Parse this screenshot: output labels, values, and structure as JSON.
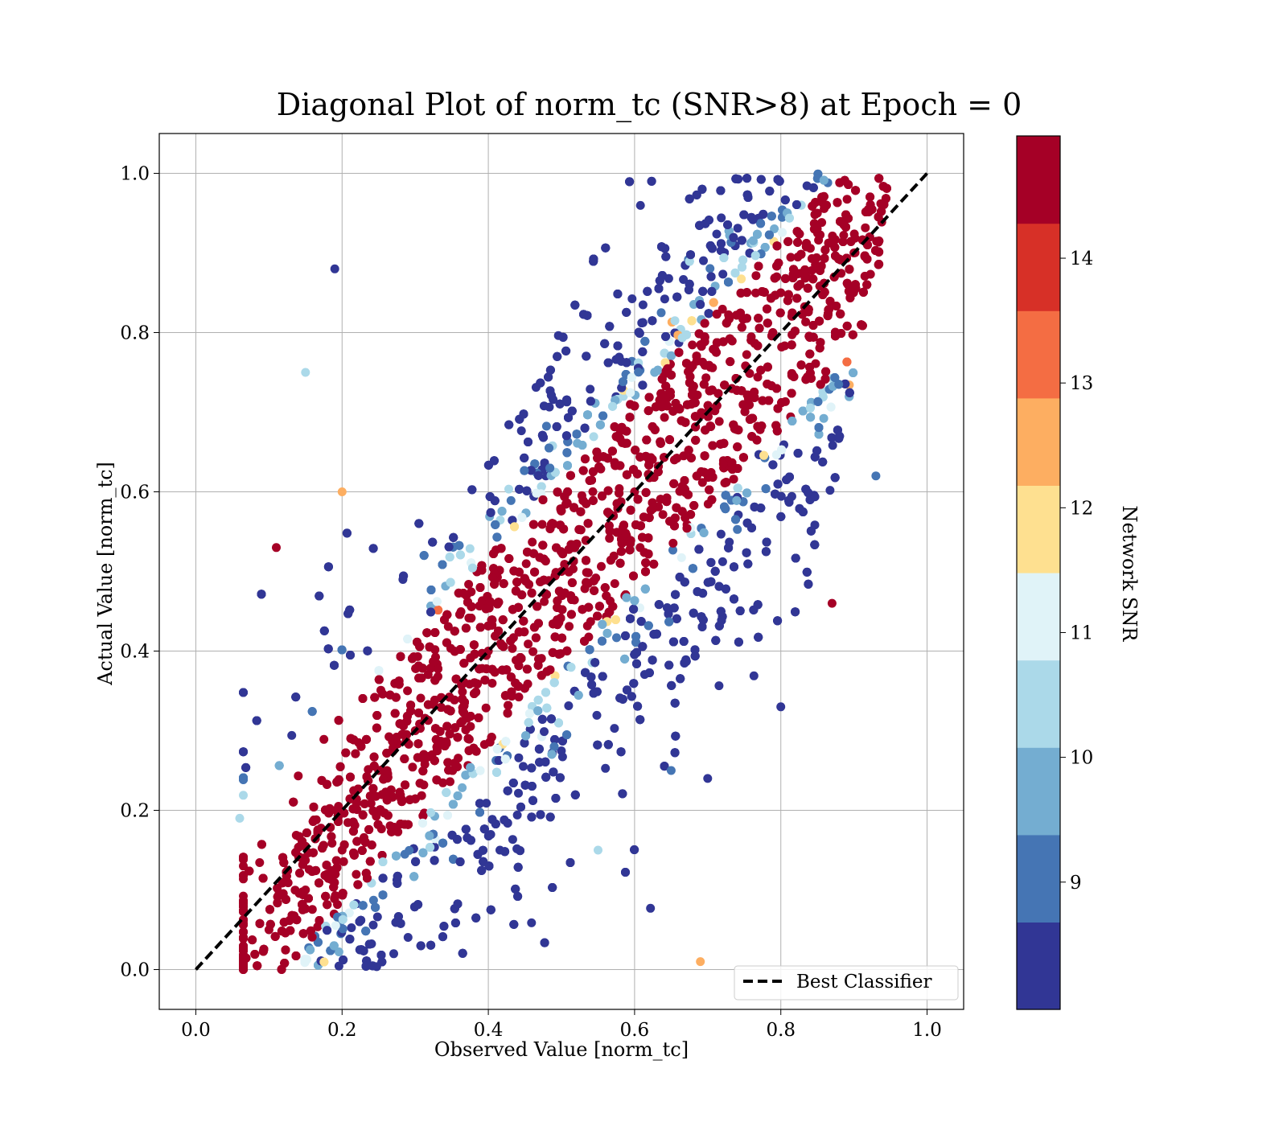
{
  "chart_data": {
    "type": "scatter",
    "title": "Diagonal Plot of norm_tc (SNR>8) at Epoch = 0",
    "xlabel": "Observed Value [norm_tc]",
    "ylabel": "Actual Value [norm_tc]",
    "xlim": [
      -0.05,
      1.05
    ],
    "ylim": [
      -0.05,
      1.05
    ],
    "xticks": [
      "0.0",
      "0.2",
      "0.4",
      "0.6",
      "0.8",
      "1.0"
    ],
    "yticks": [
      "0.0",
      "0.2",
      "0.4",
      "0.6",
      "0.8",
      "1.0"
    ],
    "grid": true,
    "legend": {
      "placement": "lower-right",
      "entries": [
        "Best Classifier"
      ]
    },
    "reference_line": {
      "name": "Best Classifier",
      "style": "dashed",
      "color": "#000000",
      "x": [
        0,
        1
      ],
      "y": [
        0,
        1
      ]
    },
    "colorbar": {
      "label": "Network SNR",
      "range": [
        8,
        15
      ],
      "ticks": [
        "9",
        "10",
        "11",
        "12",
        "13",
        "14"
      ],
      "levels": 10,
      "colormap": "RdYlBu_r",
      "colors": [
        "#313695",
        "#4575b4",
        "#74add1",
        "#abd9e9",
        "#e0f3f8",
        "#fee090",
        "#fdae61",
        "#f46d43",
        "#d73027",
        "#a50026"
      ]
    },
    "series": [
      {
        "description_points": [
          {
            "x": 0.1,
            "y": 0.05,
            "snr": 14.8
          },
          {
            "x": 0.15,
            "y": 0.1,
            "snr": 14.9
          },
          {
            "x": 0.2,
            "y": 0.15,
            "snr": 14.9
          },
          {
            "x": 0.25,
            "y": 0.25,
            "snr": 14.9
          },
          {
            "x": 0.3,
            "y": 0.3,
            "snr": 14.8
          },
          {
            "x": 0.4,
            "y": 0.4,
            "snr": 14.9
          },
          {
            "x": 0.5,
            "y": 0.5,
            "snr": 14.9
          },
          {
            "x": 0.6,
            "y": 0.6,
            "snr": 14.8
          },
          {
            "x": 0.7,
            "y": 0.7,
            "snr": 14.9
          },
          {
            "x": 0.8,
            "y": 0.85,
            "snr": 14.9
          },
          {
            "x": 0.85,
            "y": 0.95,
            "snr": 14.9
          },
          {
            "x": 0.9,
            "y": 0.9,
            "snr": 14.5
          },
          {
            "x": 0.2,
            "y": 0.6,
            "snr": 12.5
          },
          {
            "x": 0.15,
            "y": 0.75,
            "snr": 10.2
          },
          {
            "x": 0.55,
            "y": 0.15,
            "snr": 10.4
          },
          {
            "x": 0.65,
            "y": 0.25,
            "snr": 9.1
          },
          {
            "x": 0.8,
            "y": 0.33,
            "snr": 8.6
          },
          {
            "x": 0.7,
            "y": 0.24,
            "snr": 8.4
          },
          {
            "x": 0.93,
            "y": 0.62,
            "snr": 9.2
          },
          {
            "x": 0.87,
            "y": 0.46,
            "snr": 14.8
          },
          {
            "x": 0.69,
            "y": 0.01,
            "snr": 12.6
          },
          {
            "x": 0.19,
            "y": 0.88,
            "snr": 8.7
          },
          {
            "x": 0.11,
            "y": 0.53,
            "snr": 14.8
          },
          {
            "x": 0.06,
            "y": 0.19,
            "snr": 10.3
          }
        ]
      }
    ]
  }
}
